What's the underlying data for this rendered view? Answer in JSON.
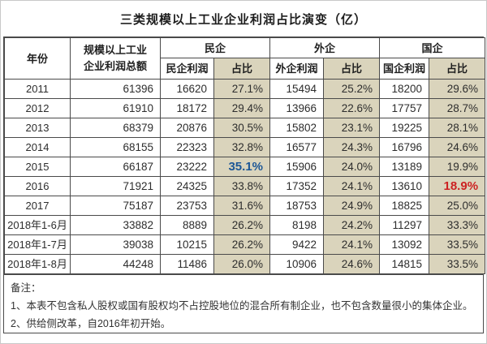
{
  "title": "三类规模以上工业企业利润占比演变（亿）",
  "colors": {
    "accent_blue": "#1d5796",
    "accent_red": "#cc2222",
    "share_column_bg": "#dad4bc",
    "table_border": "#4a4a4a"
  },
  "table": {
    "header": {
      "year": "年份",
      "total_line1": "规模以上工业",
      "total_line2": "企业利润总额",
      "groups": [
        {
          "label": "民企",
          "profit": "民企利润",
          "share": "占比"
        },
        {
          "label": "外企",
          "profit": "外企利润",
          "share": "占比"
        },
        {
          "label": "国企",
          "profit": "国企利润",
          "share": "占比"
        }
      ]
    },
    "rows": [
      {
        "year": "2011",
        "total": "61396",
        "pp": "16620",
        "ps": "27.1%",
        "fp": "15494",
        "fs": "25.2%",
        "sp": "18200",
        "ss": "29.6%"
      },
      {
        "year": "2012",
        "total": "61910",
        "pp": "18172",
        "ps": "29.4%",
        "fp": "13966",
        "fs": "22.6%",
        "sp": "17757",
        "ss": "28.7%"
      },
      {
        "year": "2013",
        "total": "68379",
        "pp": "20876",
        "ps": "30.5%",
        "fp": "15802",
        "fs": "23.1%",
        "sp": "19225",
        "ss": "28.1%"
      },
      {
        "year": "2014",
        "total": "68155",
        "pp": "22323",
        "ps": "32.8%",
        "fp": "16577",
        "fs": "24.3%",
        "sp": "16796",
        "ss": "24.6%"
      },
      {
        "year": "2015",
        "total": "66187",
        "pp": "23222",
        "ps": "35.1%",
        "fp": "15906",
        "fs": "24.0%",
        "sp": "13189",
        "ss": "19.9%",
        "em": {
          "ps": "blue"
        }
      },
      {
        "year": "2016",
        "total": "71921",
        "pp": "24325",
        "ps": "33.8%",
        "fp": "17352",
        "fs": "24.1%",
        "sp": "13610",
        "ss": "18.9%",
        "em": {
          "ss": "red"
        }
      },
      {
        "year": "2017",
        "total": "75187",
        "pp": "23753",
        "ps": "31.6%",
        "fp": "18753",
        "fs": "24.9%",
        "sp": "18825",
        "ss": "25.0%"
      },
      {
        "year": "2018年1-6月",
        "total": "33882",
        "pp": "8889",
        "ps": "26.2%",
        "fp": "8198",
        "fs": "24.2%",
        "sp": "11297",
        "ss": "33.3%"
      },
      {
        "year": "2018年1-7月",
        "total": "39038",
        "pp": "10215",
        "ps": "26.2%",
        "fp": "9422",
        "fs": "24.1%",
        "sp": "13092",
        "ss": "33.5%"
      },
      {
        "year": "2018年1-8月",
        "total": "44248",
        "pp": "11486",
        "ps": "26.0%",
        "fp": "10906",
        "fs": "24.6%",
        "sp": "14815",
        "ss": "33.5%"
      }
    ]
  },
  "notes": {
    "label": "备注：",
    "items": [
      "1、本表不包含私人股权或国有股权均不占控股地位的混合所有制企业，也不包含数量很小的集体企业。",
      "2、供给侧改革，自2016年初开始。"
    ]
  },
  "chart_data": {
    "type": "table",
    "title": "三类规模以上工业企业利润占比演变（亿）",
    "columns": [
      "年份",
      "规模以上工业企业利润总额",
      "民企利润",
      "民企占比",
      "外企利润",
      "外企占比",
      "国企利润",
      "国企占比"
    ],
    "rows": [
      [
        "2011",
        61396,
        16620,
        "27.1%",
        15494,
        "25.2%",
        18200,
        "29.6%"
      ],
      [
        "2012",
        61910,
        18172,
        "29.4%",
        13966,
        "22.6%",
        17757,
        "28.7%"
      ],
      [
        "2013",
        68379,
        20876,
        "30.5%",
        15802,
        "23.1%",
        19225,
        "28.1%"
      ],
      [
        "2014",
        68155,
        22323,
        "32.8%",
        16577,
        "24.3%",
        16796,
        "24.6%"
      ],
      [
        "2015",
        66187,
        23222,
        "35.1%",
        15906,
        "24.0%",
        13189,
        "19.9%"
      ],
      [
        "2016",
        71921,
        24325,
        "33.8%",
        17352,
        "24.1%",
        13610,
        "18.9%"
      ],
      [
        "2017",
        75187,
        23753,
        "31.6%",
        18753,
        "24.9%",
        18825,
        "25.0%"
      ],
      [
        "2018年1-6月",
        33882,
        8889,
        "26.2%",
        8198,
        "24.2%",
        11297,
        "33.3%"
      ],
      [
        "2018年1-7月",
        39038,
        10215,
        "26.2%",
        9422,
        "24.1%",
        13092,
        "33.5%"
      ],
      [
        "2018年1-8月",
        44248,
        11486,
        "26.0%",
        10906,
        "24.6%",
        14815,
        "33.5%"
      ]
    ],
    "highlights": [
      {
        "cell": [
          "2015",
          "民企占比"
        ],
        "value": "35.1%",
        "style": "bold blue"
      },
      {
        "cell": [
          "2016",
          "国企占比"
        ],
        "value": "18.9%",
        "style": "bold red"
      }
    ],
    "notes": [
      "1、本表不包含私人股权或国有股权均不占控股地位的混合所有制企业，也不包含数量很小的集体企业。",
      "2、供给侧改革，自2016年初开始。"
    ]
  }
}
